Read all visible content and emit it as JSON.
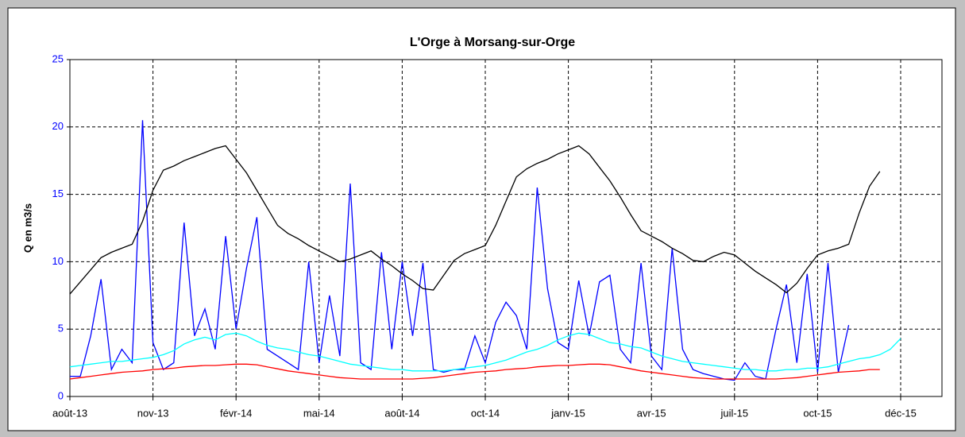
{
  "chart_data": {
    "type": "line",
    "title": "L'Orge à Morsang-sur-Orge",
    "y_label": "Q en m3/s",
    "categories": [
      "août-13",
      null,
      null,
      null,
      null,
      null,
      null,
      null,
      "nov-13",
      null,
      null,
      null,
      null,
      null,
      null,
      null,
      "févr-14",
      null,
      null,
      null,
      null,
      null,
      null,
      null,
      "mai-14",
      null,
      null,
      null,
      null,
      null,
      null,
      null,
      "août-14",
      null,
      null,
      null,
      null,
      null,
      null,
      null,
      "oct-14",
      null,
      null,
      null,
      null,
      null,
      null,
      null,
      "janv-15",
      null,
      null,
      null,
      null,
      null,
      null,
      null,
      "avr-15",
      null,
      null,
      null,
      null,
      null,
      null,
      null,
      "juil-15",
      null,
      null,
      null,
      null,
      null,
      null,
      null,
      "oct-15",
      null,
      null,
      null,
      null,
      null,
      null,
      null,
      "déc-15"
    ],
    "ylim": [
      0,
      25
    ],
    "yticks": [
      0,
      5,
      10,
      15,
      20,
      25
    ],
    "grid": true,
    "series": [
      {
        "color": "#0000ff",
        "values": [
          1.5,
          1.5,
          4.5,
          8.7,
          2.0,
          3.5,
          2.5,
          20.5,
          4.0,
          2.0,
          2.5,
          12.9,
          4.5,
          6.5,
          3.5,
          11.9,
          5.0,
          9.5,
          13.3,
          3.5,
          3.0,
          2.5,
          2.0,
          10.0,
          2.5,
          7.5,
          3.0,
          15.8,
          2.5,
          2.0,
          10.7,
          3.5,
          10.0,
          4.5,
          9.9,
          2.0,
          1.8,
          2.0,
          2.0,
          4.5,
          2.5,
          5.5,
          7.0,
          6.0,
          3.5,
          15.5,
          8.0,
          4.0,
          3.5,
          8.6,
          4.5,
          8.5,
          9.0,
          3.5,
          2.5,
          9.9,
          3.0,
          2.0,
          11.0,
          3.5,
          2.0,
          1.7,
          1.5,
          1.3,
          1.2,
          2.5,
          1.5,
          1.3,
          5.0,
          8.3,
          2.5,
          9.1,
          1.8,
          9.9,
          1.8,
          5.3,
          null,
          null,
          null,
          null,
          null
        ]
      },
      {
        "color": "#00ffff",
        "values": [
          2.2,
          2.3,
          2.4,
          2.5,
          2.6,
          2.6,
          2.7,
          2.8,
          2.9,
          3.1,
          3.4,
          3.9,
          4.2,
          4.4,
          4.2,
          4.6,
          4.7,
          4.5,
          4.1,
          3.8,
          3.6,
          3.5,
          3.3,
          3.1,
          3.0,
          2.8,
          2.6,
          2.4,
          2.3,
          2.2,
          2.1,
          2.0,
          2.0,
          1.9,
          1.9,
          1.9,
          1.9,
          2.0,
          2.1,
          2.2,
          2.3,
          2.5,
          2.7,
          3.0,
          3.3,
          3.5,
          3.8,
          4.2,
          4.5,
          4.7,
          4.6,
          4.3,
          4.0,
          3.9,
          3.7,
          3.6,
          3.3,
          3.0,
          2.8,
          2.6,
          2.5,
          2.4,
          2.3,
          2.2,
          2.1,
          2.0,
          2.0,
          1.9,
          1.9,
          2.0,
          2.0,
          2.1,
          2.1,
          2.2,
          2.4,
          2.6,
          2.8,
          2.9,
          3.1,
          3.5,
          4.3
        ]
      },
      {
        "color": "#ff0000",
        "values": [
          1.3,
          1.4,
          1.5,
          1.6,
          1.7,
          1.8,
          1.85,
          1.9,
          2.0,
          2.05,
          2.1,
          2.2,
          2.25,
          2.3,
          2.3,
          2.35,
          2.4,
          2.4,
          2.35,
          2.2,
          2.05,
          1.9,
          1.8,
          1.7,
          1.6,
          1.5,
          1.4,
          1.35,
          1.3,
          1.3,
          1.3,
          1.3,
          1.3,
          1.3,
          1.35,
          1.4,
          1.5,
          1.6,
          1.7,
          1.8,
          1.85,
          1.9,
          2.0,
          2.05,
          2.1,
          2.2,
          2.25,
          2.3,
          2.3,
          2.35,
          2.4,
          2.4,
          2.35,
          2.2,
          2.05,
          1.9,
          1.8,
          1.7,
          1.6,
          1.5,
          1.4,
          1.35,
          1.3,
          1.3,
          1.3,
          1.3,
          1.3,
          1.3,
          1.3,
          1.35,
          1.4,
          1.5,
          1.6,
          1.7,
          1.8,
          1.85,
          1.9,
          2.0,
          2.0,
          null,
          null
        ]
      },
      {
        "color": "#000000",
        "values": [
          7.6,
          8.5,
          9.4,
          10.3,
          10.7,
          11.0,
          11.3,
          13.0,
          15.3,
          16.8,
          17.1,
          17.5,
          17.8,
          18.1,
          18.4,
          18.6,
          17.6,
          16.6,
          15.3,
          14.0,
          12.7,
          12.1,
          11.7,
          11.2,
          10.8,
          10.4,
          10.0,
          10.2,
          10.5,
          10.8,
          10.2,
          9.7,
          9.1,
          8.6,
          8.0,
          7.9,
          9.0,
          10.1,
          10.6,
          10.9,
          11.2,
          12.7,
          14.5,
          16.3,
          16.9,
          17.3,
          17.6,
          18.0,
          18.3,
          18.6,
          18.0,
          17.0,
          16.0,
          14.8,
          13.5,
          12.3,
          11.9,
          11.5,
          11.0,
          10.6,
          10.1,
          10.0,
          10.4,
          10.7,
          10.5,
          9.9,
          9.3,
          8.8,
          8.3,
          7.7,
          8.4,
          9.5,
          10.5,
          10.8,
          11.0,
          11.3,
          13.6,
          15.6,
          16.7,
          null,
          null
        ]
      }
    ]
  }
}
